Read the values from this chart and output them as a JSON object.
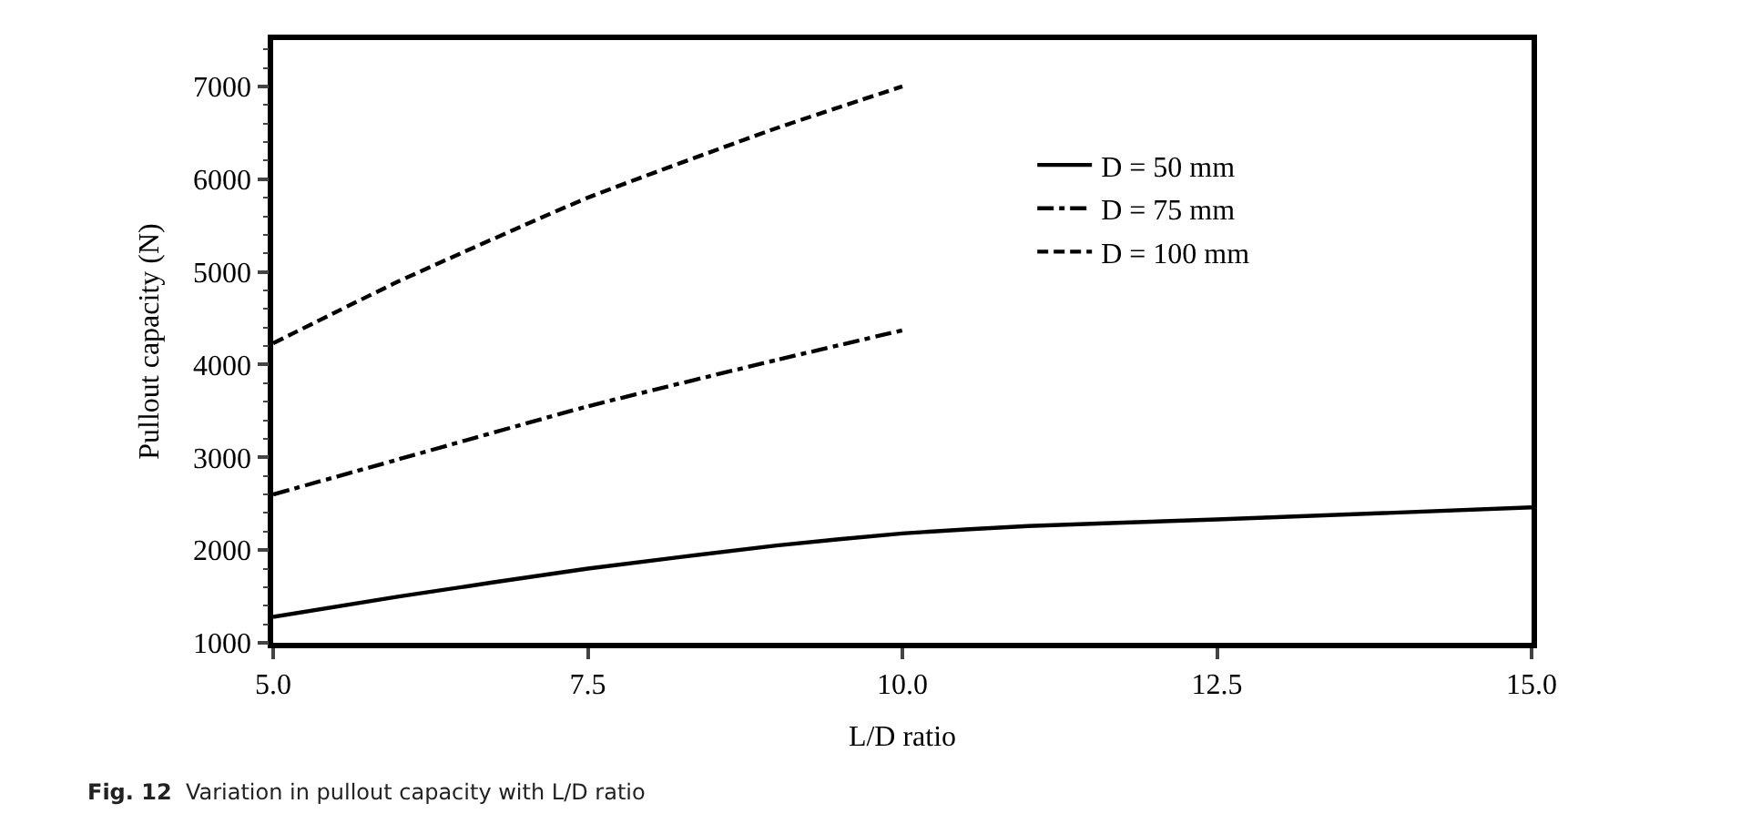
{
  "chart_data": {
    "type": "line",
    "xlabel": "L/D ratio",
    "ylabel": "Pullout capacity (N)",
    "annotations": [
      "Fig. 12  Variation in pullout capacity with L/D ratio"
    ],
    "xlim": [
      5,
      15
    ],
    "xticks": [
      {
        "value": 5,
        "label": "5.0"
      },
      {
        "value": 7.5,
        "label": "7.5"
      },
      {
        "value": 10,
        "label": "10.0"
      },
      {
        "value": 12.5,
        "label": "12.5"
      },
      {
        "value": 15,
        "label": "15.0"
      }
    ],
    "ylim": [
      1000,
      7500
    ],
    "yticks": [
      1000,
      2000,
      3000,
      4000,
      5000,
      6000,
      7000
    ],
    "legend": "right",
    "marker": "none",
    "series": [
      {
        "name": "D = 50 mm",
        "color": "#000000",
        "line_style": "solid",
        "x": [
          5,
          6,
          7.5,
          9,
          10,
          11,
          12.5,
          15
        ],
        "values": [
          1280,
          1500,
          1800,
          2050,
          2180,
          2260,
          2330,
          2460
        ]
      },
      {
        "name": "D = 75 mm",
        "color": "#000000",
        "line_style": "dashdot",
        "x": [
          5,
          6,
          7.5,
          9,
          10
        ],
        "values": [
          2600,
          2980,
          3550,
          4050,
          4370
        ]
      },
      {
        "name": "D = 100 mm",
        "color": "#000000",
        "line_style": "dashed",
        "x": [
          5,
          6,
          7.5,
          9,
          10
        ],
        "values": [
          4230,
          4900,
          5800,
          6550,
          7000
        ]
      }
    ]
  }
}
